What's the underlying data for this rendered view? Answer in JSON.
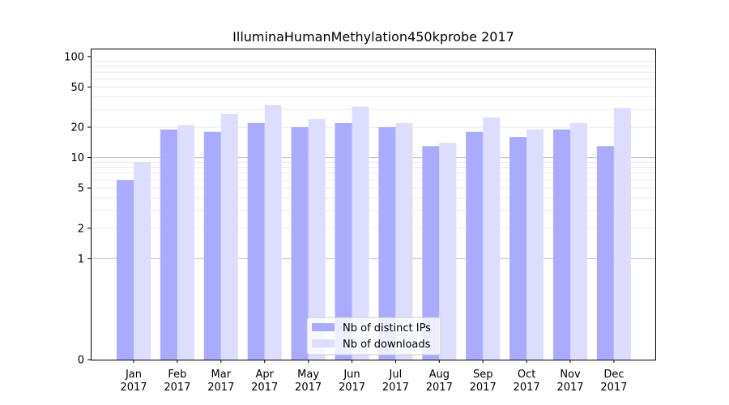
{
  "chart_data": {
    "type": "bar",
    "title": "IlluminaHumanMethylation450kprobe 2017",
    "xlabel": "",
    "ylabel": "",
    "scale": "symlog",
    "ylim": [
      0,
      120
    ],
    "grid": "y",
    "legend": "bottom-center",
    "categories": [
      [
        "Jan",
        "2017"
      ],
      [
        "Feb",
        "2017"
      ],
      [
        "Mar",
        "2017"
      ],
      [
        "Apr",
        "2017"
      ],
      [
        "May",
        "2017"
      ],
      [
        "Jun",
        "2017"
      ],
      [
        "Jul",
        "2017"
      ],
      [
        "Aug",
        "2017"
      ],
      [
        "Sep",
        "2017"
      ],
      [
        "Oct",
        "2017"
      ],
      [
        "Nov",
        "2017"
      ],
      [
        "Dec",
        "2017"
      ]
    ],
    "yticks": [
      {
        "value": 0,
        "label": "0"
      },
      {
        "value": 1,
        "label": "1"
      },
      {
        "value": 2,
        "label": "2"
      },
      {
        "value": 5,
        "label": "5"
      },
      {
        "value": 10,
        "label": "10"
      },
      {
        "value": 20,
        "label": "20"
      },
      {
        "value": 50,
        "label": "50"
      },
      {
        "value": 100,
        "label": "100"
      }
    ],
    "series": [
      {
        "name": "Nb of distinct IPs",
        "color": "#aaaaff",
        "values": [
          6,
          19,
          18,
          22,
          20,
          22,
          20,
          13,
          18,
          16,
          19,
          13
        ]
      },
      {
        "name": "Nb of downloads",
        "color": "#ddddff",
        "values": [
          9,
          21,
          27,
          33,
          24,
          32,
          22,
          14,
          25,
          19,
          22,
          31
        ]
      }
    ]
  }
}
